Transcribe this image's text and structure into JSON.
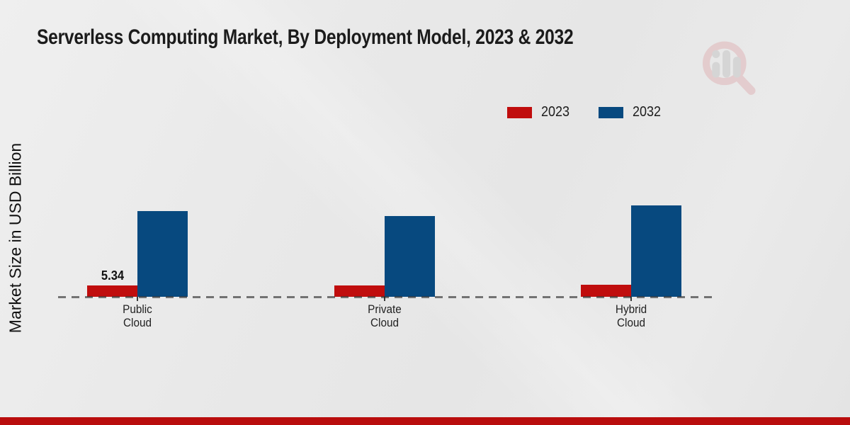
{
  "colors": {
    "accent_red": "#c00d0d",
    "bar_blue": "#07497f",
    "footer_red": "#b90d0d",
    "zero_line": "rgba(35,35,35,0.6)"
  },
  "icons": {
    "watermark": "magnifier-bar-chart-logo"
  },
  "chart_data": {
    "type": "bar",
    "title": "Serverless Computing Market, By Deployment Model, 2023 & 2032",
    "xlabel": "",
    "ylabel": "Market Size in USD Billion",
    "categories": [
      "Public Cloud",
      "Private Cloud",
      "Hybrid Cloud"
    ],
    "series": [
      {
        "name": "2023",
        "color": "#c00d0d",
        "values": [
          5.34,
          5.2,
          5.7
        ],
        "data_labels": [
          "5.34",
          null,
          null
        ]
      },
      {
        "name": "2032",
        "color": "#07497f",
        "values": [
          40.5,
          38.0,
          43.0
        ],
        "data_labels": [
          null,
          null,
          null
        ]
      }
    ],
    "ylim": [
      0,
      90
    ],
    "grid": false,
    "axis_tick_labels_visible": false,
    "zero_line_style": "dashed",
    "legend_position": "top-right"
  }
}
